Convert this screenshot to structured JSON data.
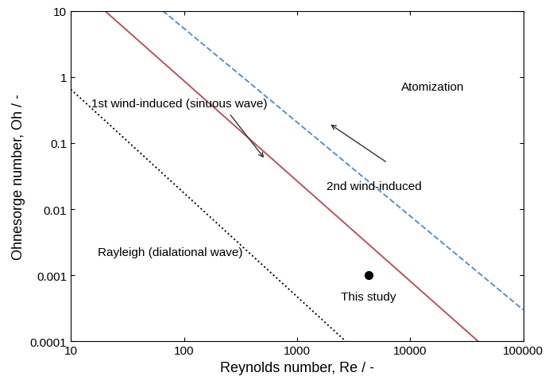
{
  "chart_data": {
    "type": "line",
    "xlabel": "Reynolds number, Re / -",
    "ylabel": "Ohnesorge number, Oh / -",
    "log": true,
    "grid": false,
    "xlim": [
      10,
      100000
    ],
    "ylim": [
      0.0001,
      10
    ],
    "xticks": [
      10,
      100,
      1000,
      10000,
      100000
    ],
    "yticks": [
      0.0001,
      0.001,
      0.01,
      0.1,
      1,
      10
    ],
    "series": [
      {
        "color": "#000000",
        "line_style": "dotted",
        "x": [
          10,
          2700
        ],
        "values": [
          0.65,
          0.0001
        ]
      },
      {
        "color": "#b5545c",
        "line_style": "solid",
        "x": [
          20,
          40000
        ],
        "values": [
          10,
          0.0001
        ]
      },
      {
        "color": "#5b8fc7",
        "line_style": "dashed",
        "x": [
          65,
          100000
        ],
        "values": [
          10,
          0.0003
        ]
      },
      {
        "type": "scatter",
        "color": "#000000",
        "marker": "circle",
        "x": [
          4300
        ],
        "values": [
          0.001
        ]
      }
    ],
    "annotations": [
      {
        "text": "1st wind-induced (sinuous wave)"
      },
      {
        "text": "Atomization"
      },
      {
        "text": "2nd wind-induced"
      },
      {
        "text": "Rayleigh (dialational wave)"
      },
      {
        "text": "This study"
      }
    ]
  }
}
